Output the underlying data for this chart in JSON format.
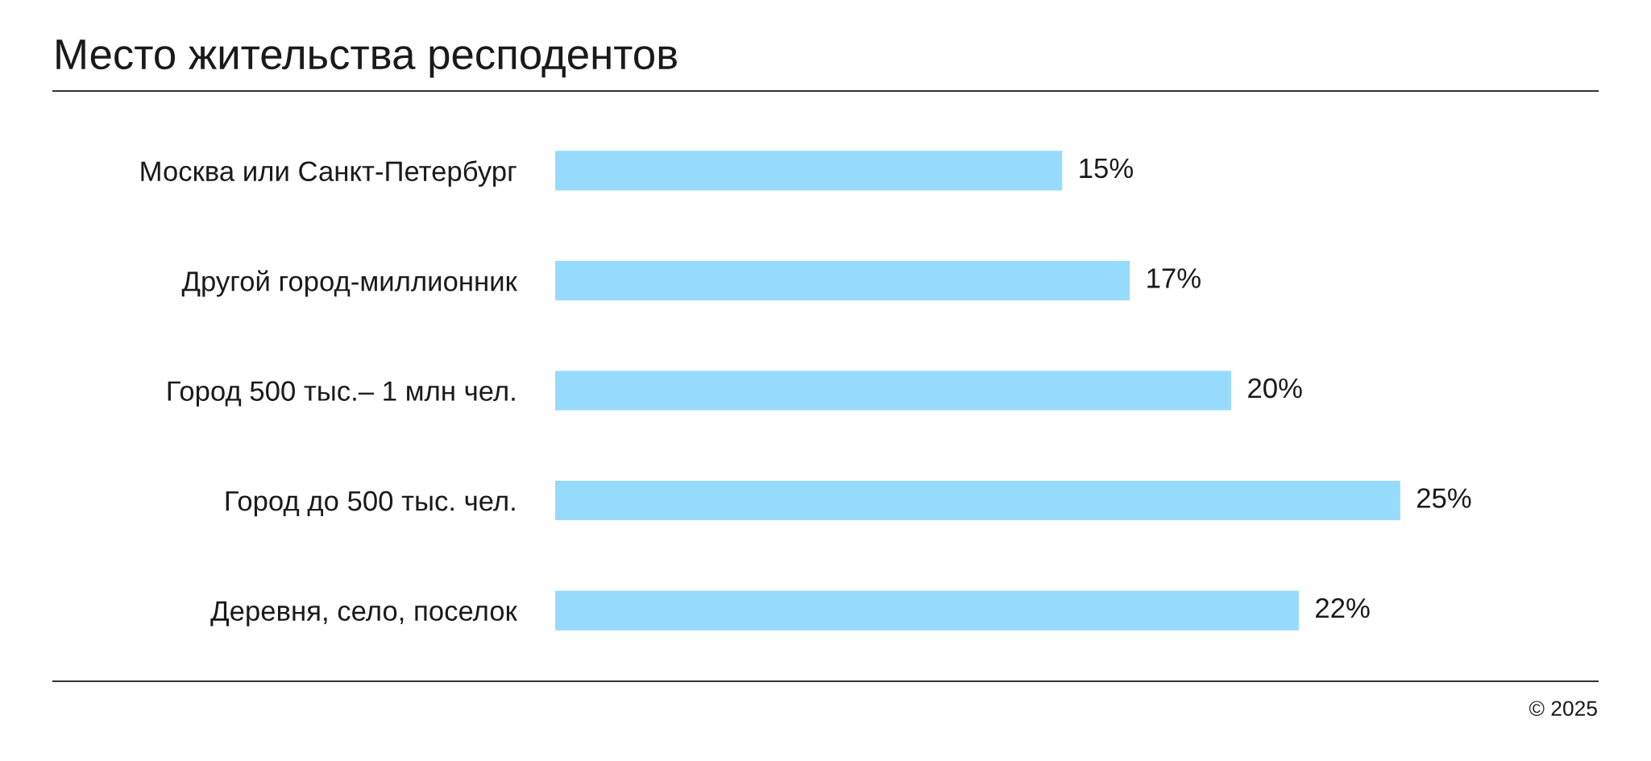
{
  "chart_data": {
    "type": "bar",
    "orientation": "horizontal",
    "title": "Место жительства респодентов",
    "categories": [
      "Москва или Санкт-Петербург",
      "Другой город-миллионник",
      "Город 500 тыс.– 1 млн чел.",
      "Город до 500 тыс. чел.",
      "Деревня, село, поселок"
    ],
    "values": [
      15,
      17,
      20,
      25,
      22
    ],
    "value_labels": [
      "15%",
      "17%",
      "20%",
      "25%",
      "22%"
    ],
    "color": "#97dbfc",
    "annotations": [
      "© 2025"
    ]
  }
}
